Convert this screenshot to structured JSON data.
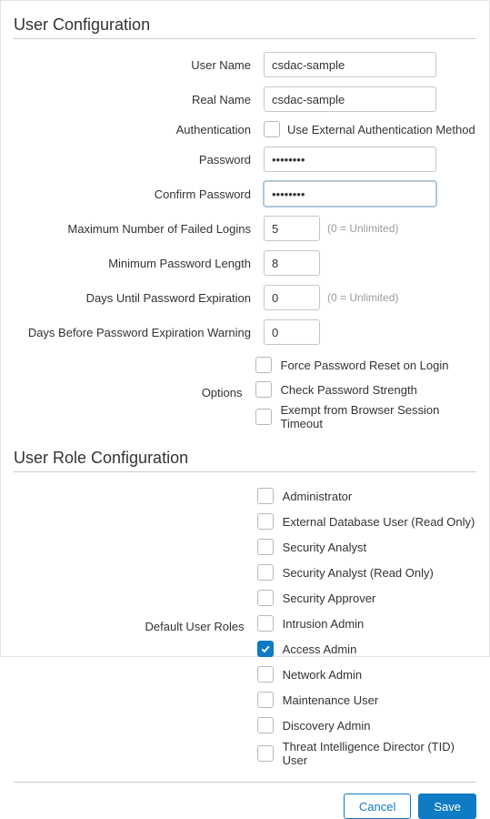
{
  "colors": {
    "accent": "#0f7bc4",
    "border": "#c6c6c6",
    "text": "#333333",
    "hint": "#9b9b9b",
    "divider": "#cccccc"
  },
  "sections": {
    "userConfig": "User Configuration",
    "roleConfig": "User Role Configuration"
  },
  "labels": {
    "userName": "User Name",
    "realName": "Real Name",
    "authentication": "Authentication",
    "password": "Password",
    "confirmPassword": "Confirm Password",
    "maxFailedLogins": "Maximum Number of Failed Logins",
    "minPasswordLength": "Minimum Password Length",
    "daysUntilExpiration": "Days Until Password Expiration",
    "daysBeforeWarning": "Days Before Password Expiration Warning",
    "options": "Options",
    "defaultUserRoles": "Default User Roles"
  },
  "values": {
    "userName": "csdac-sample",
    "realName": "csdac-sample",
    "password": "••••••••",
    "confirmPassword": "••••••••",
    "maxFailedLogins": "5",
    "minPasswordLength": "8",
    "daysUntilExpiration": "0",
    "daysBeforeWarning": "0"
  },
  "hints": {
    "unlimited": "(0 = Unlimited)"
  },
  "auth": {
    "externalMethod": {
      "label": "Use External Authentication Method",
      "checked": false
    }
  },
  "options": [
    {
      "label": "Force Password Reset on Login",
      "checked": false
    },
    {
      "label": "Check Password Strength",
      "checked": false
    },
    {
      "label": "Exempt from Browser Session Timeout",
      "checked": false
    }
  ],
  "roles": [
    {
      "label": "Administrator",
      "checked": false
    },
    {
      "label": "External Database User (Read Only)",
      "checked": false
    },
    {
      "label": "Security Analyst",
      "checked": false
    },
    {
      "label": "Security Analyst (Read Only)",
      "checked": false
    },
    {
      "label": "Security Approver",
      "checked": false
    },
    {
      "label": "Intrusion Admin",
      "checked": false
    },
    {
      "label": "Access Admin",
      "checked": true
    },
    {
      "label": "Network Admin",
      "checked": false
    },
    {
      "label": "Maintenance User",
      "checked": false
    },
    {
      "label": "Discovery Admin",
      "checked": false
    },
    {
      "label": "Threat Intelligence Director (TID) User",
      "checked": false
    }
  ],
  "buttons": {
    "cancel": "Cancel",
    "save": "Save"
  }
}
